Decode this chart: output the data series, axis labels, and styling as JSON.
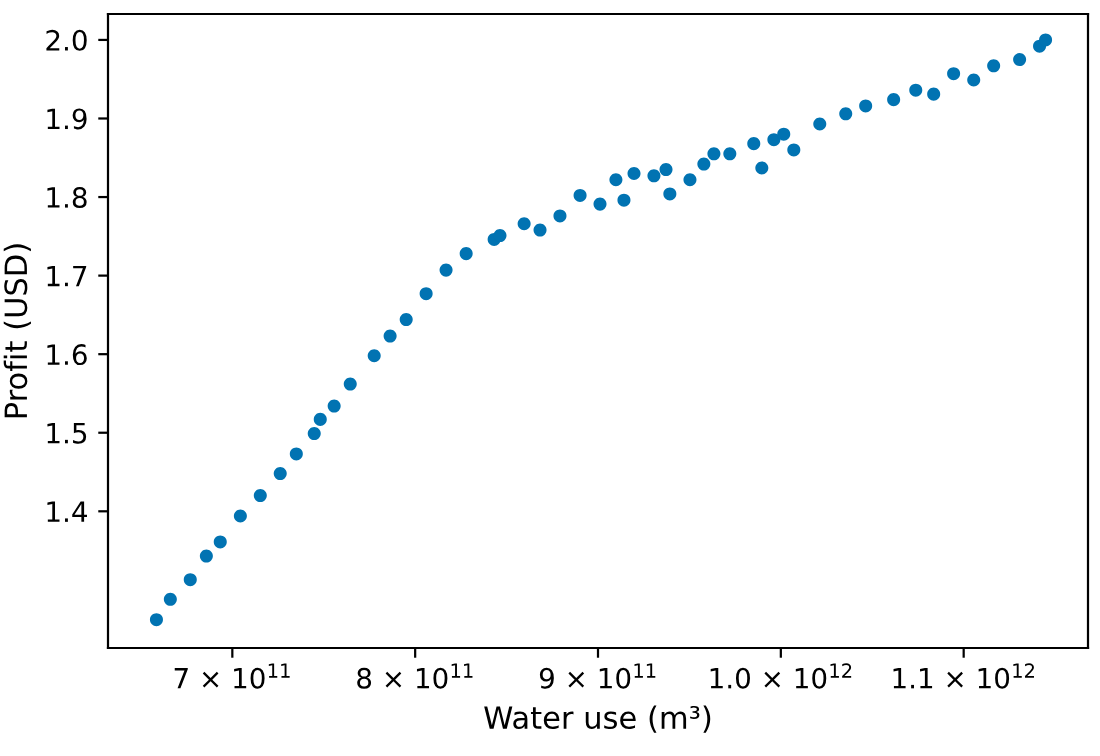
{
  "chart_data": {
    "type": "scatter",
    "xlabel": "Water use (m³)",
    "ylabel": "Profit (USD)",
    "x": [
      658500000000.0,
      666100000000.0,
      677000000000.0,
      685800000000.0,
      693400000000.0,
      704400000000.0,
      715300000000.0,
      726200000000.0,
      735000000000.0,
      744800000000.0,
      748100000000.0,
      755700000000.0,
      764500000000.0,
      777600000000.0,
      786300000000.0,
      795100000000.0,
      806000000000.0,
      816900000000.0,
      827900000000.0,
      843200000000.0,
      846400000000.0,
      859600000000.0,
      868300000000.0,
      879200000000.0,
      890200000000.0,
      901100000000.0,
      909800000000.0,
      914200000000.0,
      919700000000.0,
      930600000000.0,
      937200000000.0,
      939300000000.0,
      950300000000.0,
      957900000000.0,
      963400000000.0,
      972100000000.0,
      985200000000.0,
      989600000000.0,
      996200000000.0,
      1001600000000.0,
      1007100000000.0,
      1021300000000.0,
      1035500000000.0,
      1046400000000.0,
      1061700000000.0,
      1073800000000.0,
      1083600000000.0,
      1094500000000.0,
      1105500000000.0,
      1116400000000.0,
      1130600000000.0,
      1141500000000.0,
      1144800000000.0
    ],
    "series": [
      {
        "color": "#0173b2",
        "values": [
          1.262,
          1.288,
          1.313,
          1.343,
          1.361,
          1.394,
          1.42,
          1.448,
          1.473,
          1.499,
          1.517,
          1.534,
          1.562,
          1.598,
          1.623,
          1.644,
          1.677,
          1.707,
          1.728,
          1.746,
          1.751,
          1.766,
          1.758,
          1.776,
          1.802,
          1.791,
          1.822,
          1.796,
          1.83,
          1.827,
          1.835,
          1.804,
          1.822,
          1.842,
          1.855,
          1.855,
          1.868,
          1.837,
          1.873,
          1.88,
          1.86,
          1.893,
          1.906,
          1.916,
          1.924,
          1.936,
          1.931,
          1.957,
          1.949,
          1.967,
          1.975,
          1.992,
          2.0
        ]
      }
    ],
    "xlim": [
      632000000000.0,
      1168000000000.0
    ],
    "ylim": [
      1.226,
      2.033
    ],
    "xticks": [
      {
        "value": 700000000000.0,
        "label": "7 × 10$^{11}$"
      },
      {
        "value": 800000000000.0,
        "label": "8 × 10$^{11}$"
      },
      {
        "value": 900000000000.0,
        "label": "9 × 10$^{11}$"
      },
      {
        "value": 1000000000000.0,
        "label": "1.0 × 10$^{12}$"
      },
      {
        "value": 1100000000000.0,
        "label": "1.1 × 10$^{12}$"
      }
    ],
    "yticks": [
      {
        "value": 1.4,
        "label": "1.4"
      },
      {
        "value": 1.5,
        "label": "1.5"
      },
      {
        "value": 1.6,
        "label": "1.6"
      },
      {
        "value": 1.7,
        "label": "1.7"
      },
      {
        "value": 1.8,
        "label": "1.8"
      },
      {
        "value": 1.9,
        "label": "1.9"
      },
      {
        "value": 2.0,
        "label": "2.0"
      }
    ],
    "marker": "circle",
    "grid": false,
    "legend": false
  }
}
